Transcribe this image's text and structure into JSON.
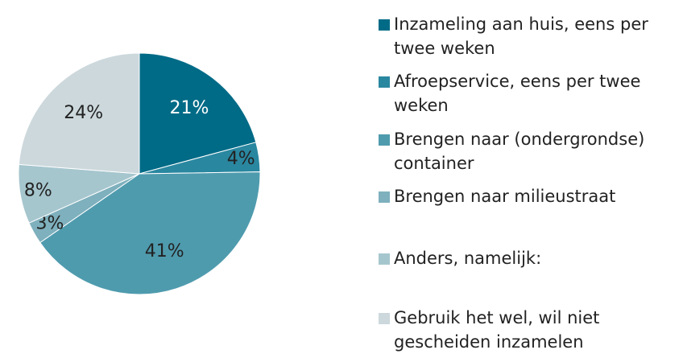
{
  "chart_data": {
    "type": "pie",
    "categories": [
      "Inzameling aan huis, eens per twee weken",
      "Afroepservice, eens per twee weken",
      "Brengen naar (ondergrondse) container",
      "Brengen naar milieustraat",
      "Anders, namelijk:",
      "Gebruik het wel, wil niet gescheiden inzamelen"
    ],
    "values": [
      21,
      4,
      41,
      3,
      8,
      24
    ],
    "value_labels": [
      "21%",
      "4%",
      "41%",
      "3%",
      "8%",
      "24%"
    ],
    "colors": [
      "#006b87",
      "#2a87a0",
      "#4f9bae",
      "#7eb0bd",
      "#a6c6ce",
      "#ccd8dc"
    ],
    "legend": "right"
  }
}
